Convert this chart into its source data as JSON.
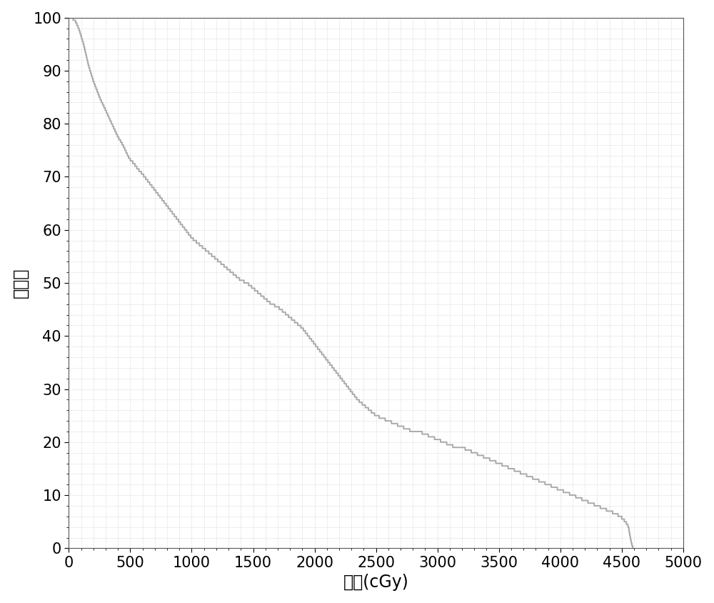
{
  "xlabel": "剂量(cGy)",
  "ylabel": "百分比",
  "xlim": [
    0,
    5000
  ],
  "ylim": [
    0,
    100
  ],
  "xticks": [
    0,
    500,
    1000,
    1500,
    2000,
    2500,
    3000,
    3500,
    4000,
    4500,
    5000
  ],
  "yticks": [
    0,
    10,
    20,
    30,
    40,
    50,
    60,
    70,
    80,
    90,
    100
  ],
  "line_color": "#aaaaaa",
  "line_width": 1.4,
  "background_color": "#ffffff",
  "grid_color": "#bbbbbb",
  "grid_style": ":",
  "grid_linewidth": 0.5,
  "xlabel_fontsize": 17,
  "ylabel_fontsize": 17,
  "tick_fontsize": 15,
  "minor_grid_spacing_x": 100,
  "minor_grid_spacing_y": 2,
  "curve_key_points": [
    [
      0,
      100
    ],
    [
      20,
      100
    ],
    [
      50,
      99.5
    ],
    [
      80,
      98
    ],
    [
      120,
      95
    ],
    [
      160,
      91
    ],
    [
      200,
      88
    ],
    [
      250,
      85
    ],
    [
      300,
      82.5
    ],
    [
      350,
      80
    ],
    [
      400,
      77.5
    ],
    [
      440,
      76
    ],
    [
      470,
      74.5
    ],
    [
      490,
      73.5
    ],
    [
      510,
      73
    ],
    [
      530,
      72.5
    ],
    [
      560,
      71.5
    ],
    [
      600,
      70.5
    ],
    [
      650,
      69
    ],
    [
      700,
      67.5
    ],
    [
      750,
      66
    ],
    [
      800,
      64.5
    ],
    [
      850,
      63
    ],
    [
      900,
      61.5
    ],
    [
      950,
      60
    ],
    [
      1000,
      58.5
    ],
    [
      1050,
      57.5
    ],
    [
      1100,
      56.5
    ],
    [
      1150,
      55.5
    ],
    [
      1200,
      54.5
    ],
    [
      1250,
      53.5
    ],
    [
      1300,
      52.5
    ],
    [
      1350,
      51.5
    ],
    [
      1400,
      50.5
    ],
    [
      1450,
      50
    ],
    [
      1500,
      49
    ],
    [
      1550,
      48
    ],
    [
      1600,
      47
    ],
    [
      1650,
      46
    ],
    [
      1700,
      45.5
    ],
    [
      1750,
      44.5
    ],
    [
      1800,
      43.5
    ],
    [
      1850,
      42.5
    ],
    [
      1900,
      41.5
    ],
    [
      1950,
      40
    ],
    [
      2000,
      38.5
    ],
    [
      2050,
      37
    ],
    [
      2100,
      35.5
    ],
    [
      2150,
      34
    ],
    [
      2200,
      32.5
    ],
    [
      2250,
      31
    ],
    [
      2300,
      29.5
    ],
    [
      2350,
      28
    ],
    [
      2400,
      27
    ],
    [
      2450,
      26
    ],
    [
      2500,
      25
    ],
    [
      2550,
      24.5
    ],
    [
      2600,
      24
    ],
    [
      2650,
      23.5
    ],
    [
      2700,
      23
    ],
    [
      2750,
      22.5
    ],
    [
      2800,
      22
    ],
    [
      2850,
      22
    ],
    [
      2900,
      21.5
    ],
    [
      2950,
      21
    ],
    [
      3000,
      20.5
    ],
    [
      3050,
      20
    ],
    [
      3100,
      19.5
    ],
    [
      3150,
      19
    ],
    [
      3200,
      19
    ],
    [
      3250,
      18.5
    ],
    [
      3300,
      18
    ],
    [
      3350,
      17.5
    ],
    [
      3400,
      17
    ],
    [
      3450,
      16.5
    ],
    [
      3500,
      16
    ],
    [
      3550,
      15.5
    ],
    [
      3600,
      15
    ],
    [
      3650,
      14.5
    ],
    [
      3700,
      14
    ],
    [
      3750,
      13.5
    ],
    [
      3800,
      13
    ],
    [
      3850,
      12.5
    ],
    [
      3900,
      12
    ],
    [
      3950,
      11.5
    ],
    [
      4000,
      11
    ],
    [
      4050,
      10.5
    ],
    [
      4100,
      10
    ],
    [
      4150,
      9.5
    ],
    [
      4200,
      9
    ],
    [
      4250,
      8.5
    ],
    [
      4300,
      8
    ],
    [
      4350,
      7.5
    ],
    [
      4400,
      7
    ],
    [
      4450,
      6.5
    ],
    [
      4490,
      6
    ],
    [
      4510,
      5.5
    ],
    [
      4530,
      5
    ],
    [
      4545,
      4.5
    ],
    [
      4555,
      4
    ],
    [
      4562,
      3
    ],
    [
      4570,
      2
    ],
    [
      4578,
      1
    ],
    [
      4585,
      0.5
    ],
    [
      4592,
      0
    ]
  ]
}
